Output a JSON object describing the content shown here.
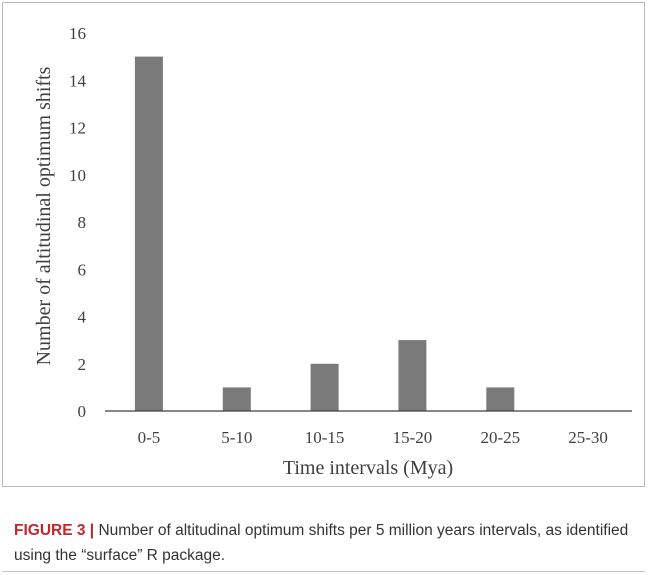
{
  "chart_data": {
    "type": "bar",
    "categories": [
      "0-5",
      "5-10",
      "10-15",
      "15-20",
      "20-25",
      "25-30"
    ],
    "values": [
      15,
      1,
      2,
      3,
      1,
      0
    ],
    "xlabel": "Time intervals (Mya)",
    "ylabel": "Number of altitudinal optimum shifts",
    "ylim": [
      0,
      16
    ],
    "yticks": [
      0,
      2,
      4,
      6,
      8,
      10,
      12,
      14,
      16
    ],
    "grid": false,
    "legend": "none",
    "bar_color": "#7a7a7a",
    "axis_color": "#3f3f3f"
  },
  "caption": {
    "label": "FIGURE 3 |",
    "text": " Number of altitudinal optimum shifts per 5 million years intervals, as identified using the “surface” R package."
  }
}
